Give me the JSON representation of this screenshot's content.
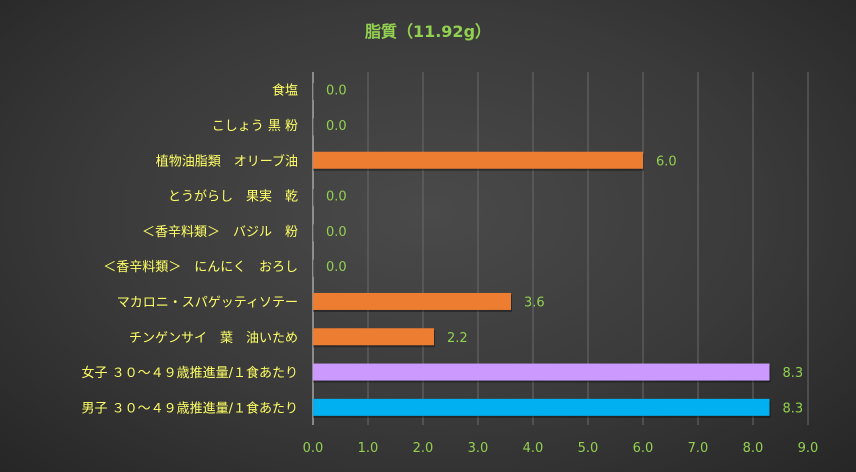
{
  "chart_data": {
    "type": "bar",
    "orientation": "horizontal",
    "title": "脂質（11.92g）",
    "categories": [
      "食塩",
      "こしょう 黒 粉",
      "植物油脂類　オリーブ油",
      "とうがらし　果実　乾",
      "＜香辛料類＞　バジル　粉",
      "＜香辛料類＞　にんにく　おろし",
      "マカロニ・スパゲッティソテー",
      "チンゲンサイ　葉　油いため",
      "女子 ３０～４９歳推進量/１食あたり",
      "男子 ３０～４９歳推進量/１食あたり"
    ],
    "values": [
      0.0,
      0.0,
      6.0,
      0.0,
      0.0,
      0.0,
      3.6,
      2.2,
      8.3,
      8.3
    ],
    "value_labels": [
      "0.0",
      "0.0",
      "6.0",
      "0.0",
      "0.0",
      "0.0",
      "3.6",
      "2.2",
      "8.3",
      "8.3"
    ],
    "bar_colors": [
      "#ed7d31",
      "#ed7d31",
      "#ed7d31",
      "#ed7d31",
      "#ed7d31",
      "#ed7d31",
      "#ed7d31",
      "#ed7d31",
      "#cc99ff",
      "#00b0f0"
    ],
    "xlim": [
      0,
      9
    ],
    "xticks": [
      "0.0",
      "1.0",
      "2.0",
      "3.0",
      "4.0",
      "5.0",
      "6.0",
      "7.0",
      "8.0",
      "9.0"
    ],
    "grid": true,
    "xlabel": "",
    "ylabel": ""
  }
}
